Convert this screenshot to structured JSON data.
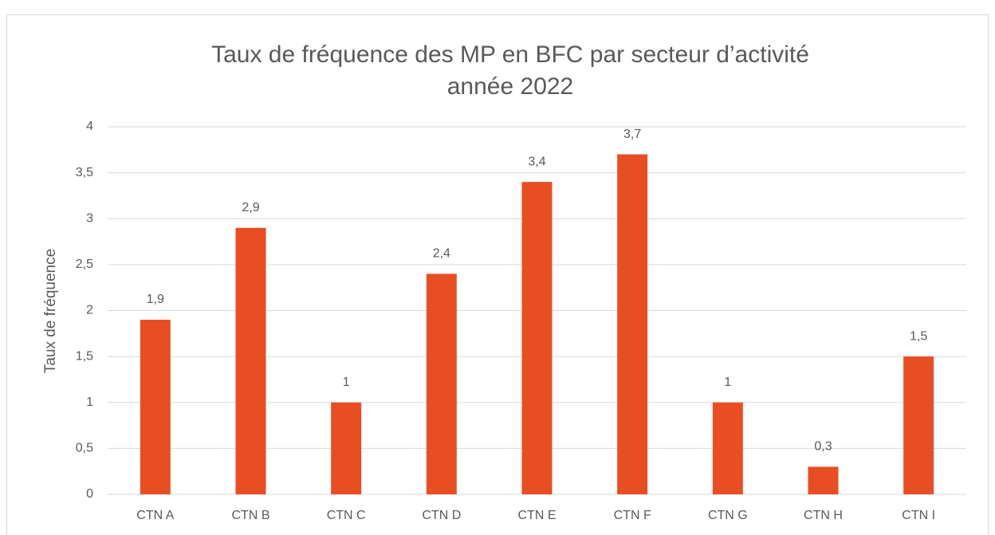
{
  "chart_data": {
    "type": "bar",
    "title": "Taux de fréquence des MP en BFC par secteur d’activité",
    "subtitle": "année 2022",
    "y_label": "Taux de fréquence",
    "categories": [
      "CTN A",
      "CTN B",
      "CTN C",
      "CTN D",
      "CTN E",
      "CTN F",
      "CTN G",
      "CTN H",
      "CTN I"
    ],
    "values": [
      1.9,
      2.9,
      1,
      2.4,
      3.4,
      3.7,
      1,
      0.3,
      1.5
    ],
    "value_labels": [
      "1,9",
      "2,9",
      "1",
      "2,4",
      "3,4",
      "3,7",
      "1",
      "0,3",
      "1,5"
    ],
    "color": "#e84e23",
    "ylim": [
      0,
      4
    ],
    "yticks": [
      0,
      {
        "value": 0.5,
        "label": "0,5"
      },
      1,
      {
        "value": 1.5,
        "label": "1,5"
      },
      2,
      {
        "value": 2.5,
        "label": "2,5"
      },
      3,
      {
        "value": 3.5,
        "label": "3,5"
      },
      4
    ],
    "grid": true
  }
}
